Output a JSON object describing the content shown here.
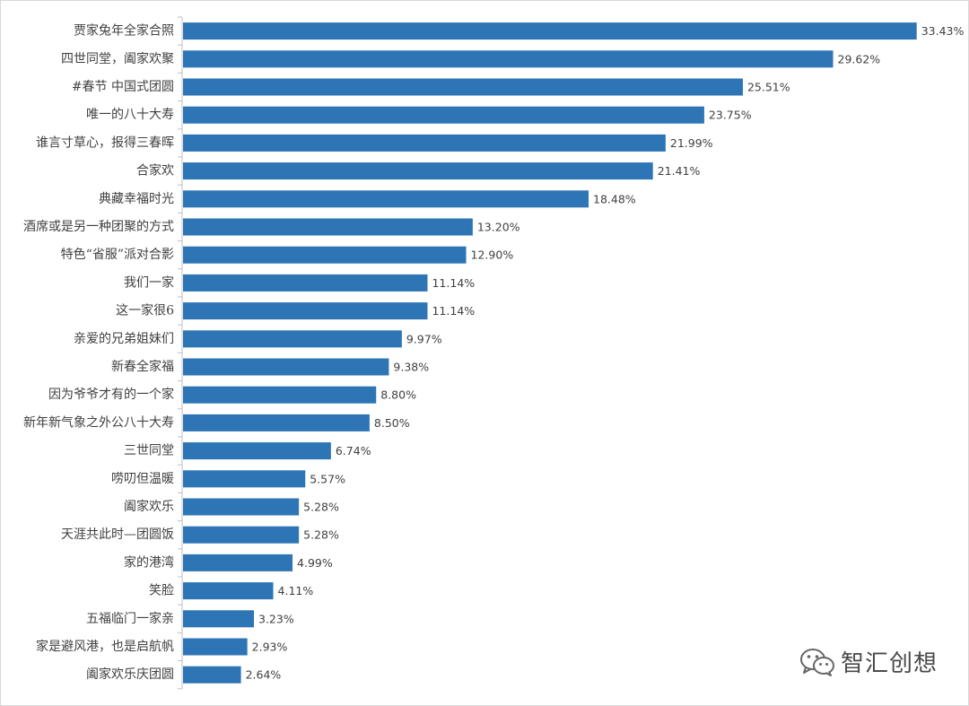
{
  "chart_data": {
    "type": "bar",
    "orientation": "horizontal",
    "title": "",
    "xlabel": "",
    "ylabel": "",
    "xlim": [
      0,
      35
    ],
    "grid": false,
    "bar_color": "#2e75b6",
    "categories": [
      "贾家兔年全家合照",
      "四世同堂，阖家欢聚",
      "#春节 中国式团圆",
      "唯一的八十大寿",
      "谁言寸草心，报得三春晖",
      "合家欢",
      "典藏幸福时光",
      "酒席或是另一种团聚的方式",
      "特色“省服”派对合影",
      "我们一家",
      "这一家很6",
      "亲爱的兄弟姐妹们",
      "新春全家福",
      "因为爷爷才有的一个家",
      "新年新气象之外公八十大寿",
      "三世同堂",
      "唠叨但温暖",
      "阖家欢乐",
      "天涯共此时—团圆饭",
      "家的港湾",
      "笑脸",
      "五福临门一家亲",
      "家是避风港，也是启航帆",
      "阖家欢乐庆团圆"
    ],
    "values": [
      33.43,
      29.62,
      25.51,
      23.75,
      21.99,
      21.41,
      18.48,
      13.2,
      12.9,
      11.14,
      11.14,
      9.97,
      9.38,
      8.8,
      8.5,
      6.74,
      5.57,
      5.28,
      5.28,
      4.99,
      4.11,
      3.23,
      2.93,
      2.64
    ],
    "value_labels": [
      "33.43%",
      "29.62%",
      "25.51%",
      "23.75%",
      "21.99%",
      "21.41%",
      "18.48%",
      "13.20%",
      "12.90%",
      "11.14%",
      "11.14%",
      "9.97%",
      "9.38%",
      "8.80%",
      "8.50%",
      "6.74%",
      "5.57%",
      "5.28%",
      "5.28%",
      "4.99%",
      "4.11%",
      "3.23%",
      "2.93%",
      "2.64%"
    ]
  },
  "watermark": {
    "text": "智汇创想",
    "icon": "wechat-icon"
  }
}
